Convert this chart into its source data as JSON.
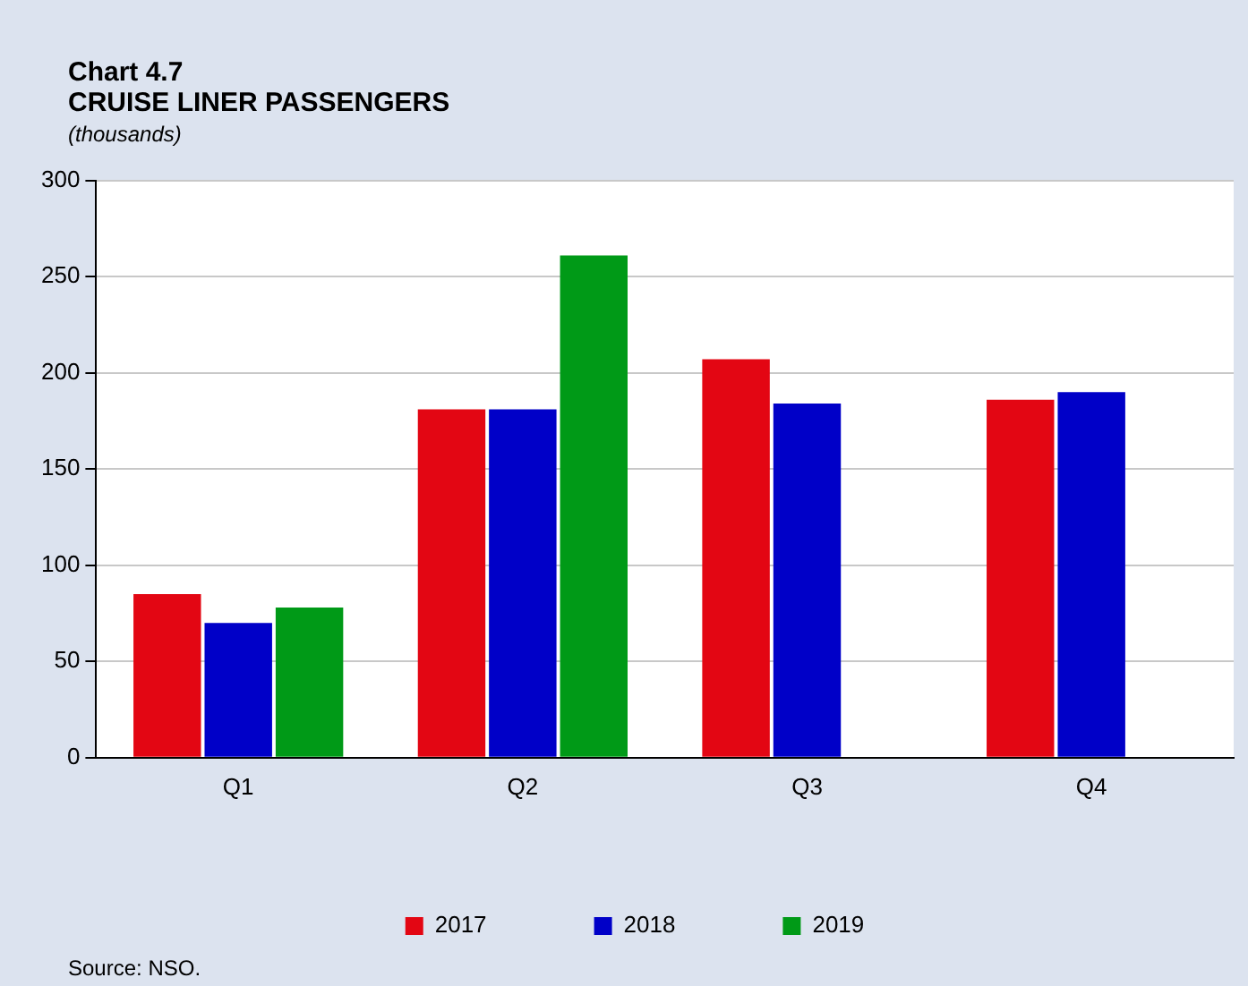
{
  "chart_data": {
    "type": "bar",
    "title": "Chart 4.7\nCRUISE LINER PASSENGERS",
    "subtitle": "(thousands)",
    "categories": [
      "Q1",
      "Q2",
      "Q3",
      "Q4"
    ],
    "series": [
      {
        "name": "2017",
        "color": "#e30613",
        "values": [
          85,
          181,
          207,
          186
        ]
      },
      {
        "name": "2018",
        "color": "#0000c8",
        "values": [
          70,
          181,
          184,
          190
        ]
      },
      {
        "name": "2019",
        "color": "#009a17",
        "values": [
          78,
          261,
          null,
          null
        ]
      }
    ],
    "ylim": [
      0,
      300
    ],
    "yticks": [
      0,
      50,
      100,
      150,
      200,
      250,
      300
    ],
    "grid": "y",
    "legend": "bottom",
    "annotations": [
      "Source: NSO."
    ]
  }
}
